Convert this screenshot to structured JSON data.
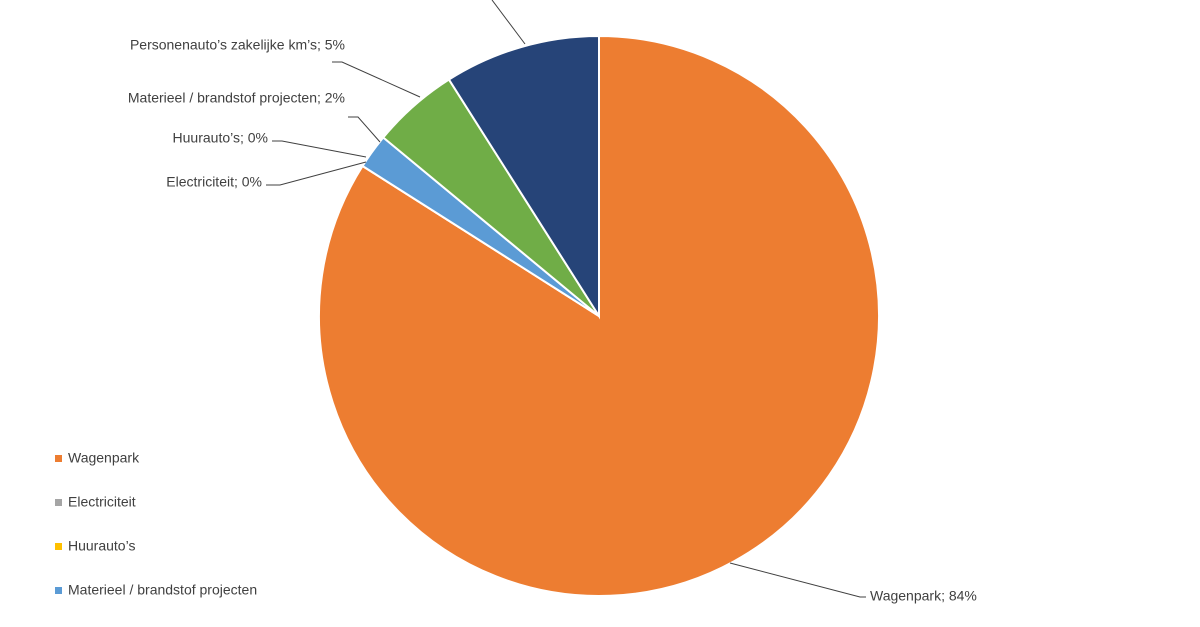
{
  "chart_data": {
    "type": "pie",
    "categories": [
      "Wagenpark",
      "Electriciteit",
      "Huurauto’s",
      "Materieel / brandstof projecten",
      "Personenauto’s zakelijke km’s",
      null
    ],
    "values": [
      84,
      0,
      0,
      2,
      5,
      9
    ],
    "value_labels": [
      "Wagenpark; 84%",
      "Electriciteit; 0%",
      "Huurauto’s; 0%",
      "Materieel / brandstof projecten; 2%",
      "Personenauto’s zakelijke km’s; 5%",
      null
    ],
    "colors": [
      "#ED7D31",
      "#A5A5A5",
      "#FFC000",
      "#5B9BD5",
      "#70AD47",
      "#264478"
    ]
  }
}
